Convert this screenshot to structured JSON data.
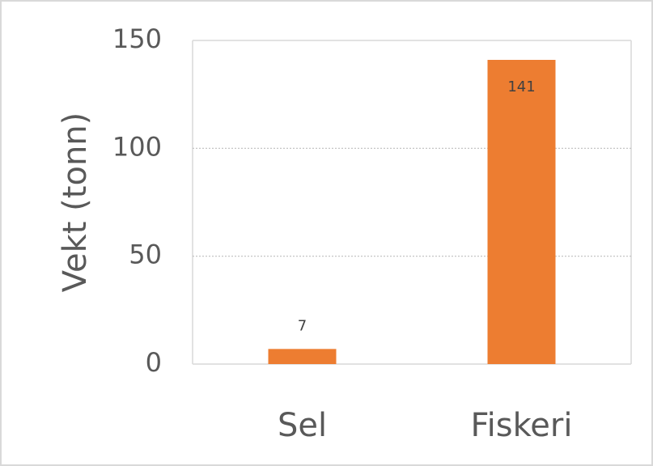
{
  "chart_data": {
    "type": "bar",
    "y_label": "Vekt (tonn)",
    "categories": [
      "Sel",
      "Fiskeri"
    ],
    "values": [
      7,
      141
    ],
    "color": "#ed7d31",
    "ylim": [
      0,
      150
    ],
    "yticks": [
      0,
      50,
      100,
      150
    ],
    "grid": true
  }
}
